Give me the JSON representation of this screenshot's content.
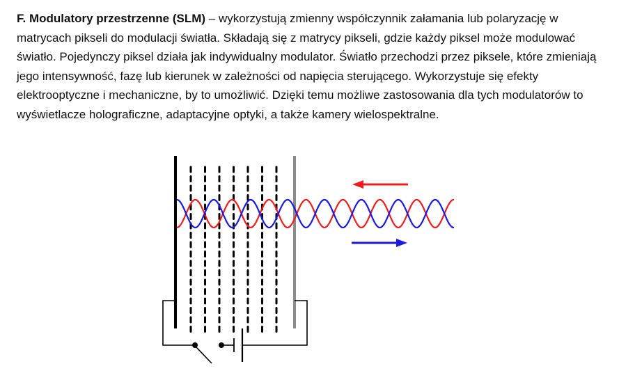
{
  "section": {
    "term": "F. Modulatory przestrzenne (SLM)",
    "description": " – wykorzystują zmienny współczynnik załamania lub polaryzację w matrycach pikseli do modulacji światła. Składają się z matrycy pikseli, gdzie każdy piksel może modulować światło. Pojedynczy piksel działa jak indywidualny modulator. Światło przechodzi przez piksele, które zmieniają jego intensywność, fazę lub kierunek w zależności od napięcia sterującego. Wykorzystuje się efekty elektrooptyczne i mechaniczne, by to umożliwić. Dzięki temu możliwe zastosowania dla tych modulatorów to wyświetlacze holograficzne, adaptacyjne optyki, a także kamery wielospektralne."
  },
  "figure": {
    "colors": {
      "red_wave": "#ee1c1c",
      "blue_wave": "#1a1adf",
      "plate_left": "#000000",
      "plate_right": "#8c8c8c",
      "circuit": "#000000"
    },
    "arrows": {
      "top": "red-arrow-left",
      "bottom": "blue-arrow-right"
    },
    "pixel_columns": 7
  }
}
